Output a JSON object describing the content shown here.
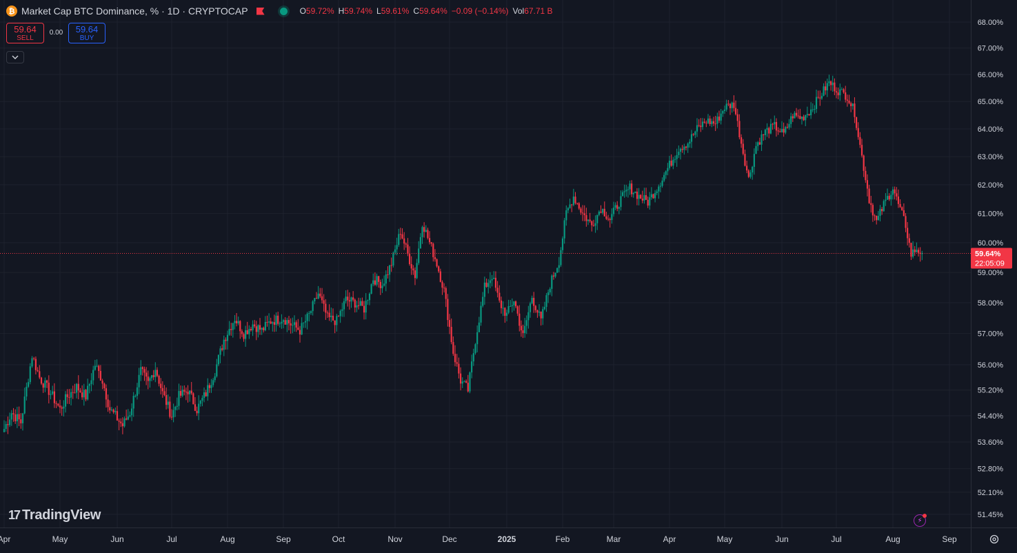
{
  "header": {
    "title": "Market Cap BTC Dominance, % · 1D · CRYPTOCAP",
    "coin_icon": "bitcoin-icon",
    "ohlc": [
      {
        "label": "O",
        "value": "59.72%"
      },
      {
        "label": "H",
        "value": "59.74%"
      },
      {
        "label": "L",
        "value": "59.61%"
      },
      {
        "label": "C",
        "value": "59.64%"
      },
      {
        "label": "",
        "value": "−0.09 (−0.14%)"
      },
      {
        "label": "Vol",
        "value": "67.71 B"
      }
    ]
  },
  "trade": {
    "sell_price": "59.64",
    "sell_label": "SELL",
    "spread": "0.00",
    "buy_price": "59.64",
    "buy_label": "BUY"
  },
  "branding": {
    "logo_text": "TradingView",
    "logo_mark": "17"
  },
  "price_badge": {
    "price": "59.64%",
    "countdown": "22:05:09"
  },
  "colors": {
    "up": "#089981",
    "down": "#f23645",
    "background": "#131722",
    "grid": "#1e222d",
    "text": "#d1d4dc",
    "buy": "#2962ff"
  },
  "chart_data": {
    "type": "candlestick",
    "title": "Market Cap BTC Dominance, % · 1D · CRYPTOCAP",
    "y_scale": "log",
    "y_tick_labels": [
      "68.00%",
      "67.00%",
      "66.00%",
      "65.00%",
      "64.00%",
      "63.00%",
      "62.00%",
      "61.00%",
      "60.00%",
      "59.00%",
      "58.00%",
      "57.00%",
      "56.00%",
      "55.20%",
      "54.40%",
      "53.60%",
      "52.80%",
      "52.10%",
      "51.45%"
    ],
    "y_ticks": [
      68.0,
      67.0,
      66.0,
      65.0,
      64.0,
      63.0,
      62.0,
      61.0,
      60.0,
      59.0,
      58.0,
      57.0,
      56.0,
      55.2,
      54.4,
      53.6,
      52.8,
      52.1,
      51.45
    ],
    "x_tick_labels": [
      "Apr",
      "May",
      "Jun",
      "Jul",
      "Aug",
      "Sep",
      "Oct",
      "Nov",
      "Dec",
      "2025",
      "Feb",
      "Mar",
      "Apr",
      "May",
      "Jun",
      "Jul",
      "Aug",
      "Sep"
    ],
    "x_ticks": [
      "2024-04-01",
      "2024-05-01",
      "2024-06-01",
      "2024-07-01",
      "2024-08-01",
      "2024-09-01",
      "2024-10-01",
      "2024-11-01",
      "2024-12-01",
      "2025-01-01",
      "2025-02-01",
      "2025-03-01",
      "2025-04-01",
      "2025-05-01",
      "2025-06-01",
      "2025-07-01",
      "2025-08-01",
      "2025-09-01"
    ],
    "last_price": 59.64,
    "grid": true,
    "daily_close_points": [
      [
        "2024-04-01",
        54.0
      ],
      [
        "2024-04-05",
        54.5
      ],
      [
        "2024-04-10",
        54.2
      ],
      [
        "2024-04-16",
        56.3
      ],
      [
        "2024-04-20",
        55.6
      ],
      [
        "2024-04-26",
        55.1
      ],
      [
        "2024-05-01",
        54.6
      ],
      [
        "2024-05-05",
        55.0
      ],
      [
        "2024-05-10",
        55.3
      ],
      [
        "2024-05-15",
        55.0
      ],
      [
        "2024-05-20",
        56.0
      ],
      [
        "2024-05-24",
        55.5
      ],
      [
        "2024-05-28",
        54.6
      ],
      [
        "2024-06-04",
        54.1
      ],
      [
        "2024-06-08",
        54.5
      ],
      [
        "2024-06-14",
        55.8
      ],
      [
        "2024-06-18",
        55.4
      ],
      [
        "2024-06-22",
        55.9
      ],
      [
        "2024-06-26",
        55.1
      ],
      [
        "2024-07-01",
        54.4
      ],
      [
        "2024-07-05",
        55.0
      ],
      [
        "2024-07-10",
        55.2
      ],
      [
        "2024-07-15",
        54.6
      ],
      [
        "2024-07-20",
        55.1
      ],
      [
        "2024-07-25",
        55.8
      ],
      [
        "2024-07-30",
        56.8
      ],
      [
        "2024-08-05",
        57.5
      ],
      [
        "2024-08-10",
        57.0
      ],
      [
        "2024-08-15",
        57.3
      ],
      [
        "2024-08-20",
        57.1
      ],
      [
        "2024-08-25",
        57.4
      ],
      [
        "2024-09-01",
        57.5
      ],
      [
        "2024-09-05",
        57.3
      ],
      [
        "2024-09-10",
        57.1
      ],
      [
        "2024-09-15",
        57.6
      ],
      [
        "2024-09-20",
        58.3
      ],
      [
        "2024-09-25",
        57.5
      ],
      [
        "2024-09-30",
        57.4
      ],
      [
        "2024-10-05",
        58.1
      ],
      [
        "2024-10-10",
        58.0
      ],
      [
        "2024-10-15",
        57.8
      ],
      [
        "2024-10-20",
        58.8
      ],
      [
        "2024-10-25",
        58.6
      ],
      [
        "2024-10-30",
        59.3
      ],
      [
        "2024-11-04",
        60.4
      ],
      [
        "2024-11-08",
        59.6
      ],
      [
        "2024-11-12",
        58.9
      ],
      [
        "2024-11-16",
        60.7
      ],
      [
        "2024-11-20",
        60.0
      ],
      [
        "2024-11-24",
        59.3
      ],
      [
        "2024-11-28",
        58.4
      ],
      [
        "2024-12-03",
        56.4
      ],
      [
        "2024-12-07",
        55.5
      ],
      [
        "2024-12-11",
        55.2
      ],
      [
        "2024-12-15",
        56.8
      ],
      [
        "2024-12-20",
        58.5
      ],
      [
        "2024-12-24",
        58.9
      ],
      [
        "2024-12-28",
        58.0
      ],
      [
        "2025-01-01",
        57.6
      ],
      [
        "2025-01-05",
        58.1
      ],
      [
        "2025-01-10",
        56.9
      ],
      [
        "2025-01-15",
        58.2
      ],
      [
        "2025-01-20",
        57.4
      ],
      [
        "2025-01-25",
        58.6
      ],
      [
        "2025-01-30",
        59.4
      ],
      [
        "2025-02-03",
        61.0
      ],
      [
        "2025-02-07",
        61.6
      ],
      [
        "2025-02-12",
        61.0
      ],
      [
        "2025-02-17",
        60.6
      ],
      [
        "2025-02-22",
        61.2
      ],
      [
        "2025-02-27",
        60.8
      ],
      [
        "2025-03-04",
        61.4
      ],
      [
        "2025-03-10",
        61.9
      ],
      [
        "2025-03-15",
        61.6
      ],
      [
        "2025-03-20",
        61.4
      ],
      [
        "2025-03-26",
        62.0
      ],
      [
        "2025-04-01",
        62.7
      ],
      [
        "2025-04-06",
        63.3
      ],
      [
        "2025-04-11",
        63.5
      ],
      [
        "2025-04-16",
        64.0
      ],
      [
        "2025-04-21",
        64.3
      ],
      [
        "2025-04-26",
        64.2
      ],
      [
        "2025-05-01",
        64.8
      ],
      [
        "2025-05-06",
        64.9
      ],
      [
        "2025-05-10",
        63.5
      ],
      [
        "2025-05-14",
        62.2
      ],
      [
        "2025-05-18",
        63.4
      ],
      [
        "2025-05-23",
        63.9
      ],
      [
        "2025-05-28",
        64.1
      ],
      [
        "2025-06-02",
        63.8
      ],
      [
        "2025-06-07",
        64.5
      ],
      [
        "2025-06-12",
        64.4
      ],
      [
        "2025-06-17",
        64.7
      ],
      [
        "2025-06-22",
        65.2
      ],
      [
        "2025-06-27",
        65.7
      ],
      [
        "2025-07-02",
        65.4
      ],
      [
        "2025-07-07",
        65.2
      ],
      [
        "2025-07-11",
        64.6
      ],
      [
        "2025-07-15",
        63.0
      ],
      [
        "2025-07-19",
        61.5
      ],
      [
        "2025-07-23",
        60.7
      ],
      [
        "2025-07-27",
        61.3
      ],
      [
        "2025-08-01",
        61.9
      ],
      [
        "2025-08-04",
        61.3
      ],
      [
        "2025-08-08",
        60.6
      ],
      [
        "2025-08-11",
        59.6
      ],
      [
        "2025-08-14",
        59.8
      ],
      [
        "2025-08-17",
        59.64
      ]
    ]
  }
}
